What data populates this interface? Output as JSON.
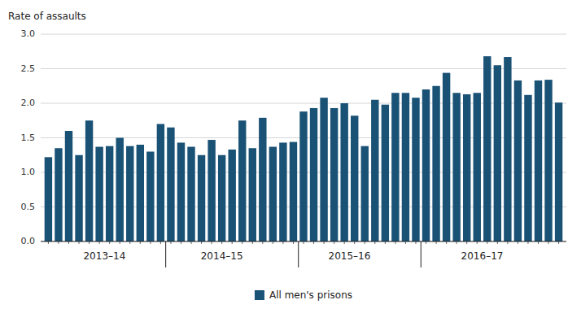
{
  "chart_data": {
    "type": "bar",
    "y_label": "Rate of assaults",
    "categories": [
      null,
      null,
      null,
      null,
      null,
      null,
      null,
      null,
      null,
      null,
      null,
      null,
      null,
      null,
      null,
      null,
      null,
      null,
      null,
      null,
      null,
      null,
      null,
      null,
      null,
      null,
      null,
      null,
      null,
      null,
      null,
      null,
      null,
      null,
      null,
      null,
      null,
      null,
      null,
      null,
      null,
      null,
      null,
      null,
      null,
      null,
      null,
      null,
      null,
      null,
      null
    ],
    "series": [
      {
        "name": "All men's prisons",
        "color": "#1a5276",
        "values": [
          1.22,
          1.35,
          1.6,
          1.25,
          1.75,
          1.37,
          1.38,
          1.5,
          1.38,
          1.4,
          1.3,
          1.7,
          1.65,
          1.43,
          1.37,
          1.25,
          1.47,
          1.25,
          1.33,
          1.75,
          1.35,
          1.79,
          1.37,
          1.43,
          1.44,
          1.88,
          1.93,
          2.08,
          1.93,
          2.0,
          1.82,
          1.38,
          2.05,
          1.98,
          2.15,
          2.15,
          2.08,
          2.2,
          2.25,
          2.44,
          2.15,
          2.13,
          2.15,
          2.68,
          2.55,
          2.67,
          2.33,
          2.12,
          2.33,
          2.34,
          2.01
        ]
      }
    ],
    "annotations": [
      {
        "text": "2013–14",
        "x": 5.5
      },
      {
        "text": "2014–15",
        "x": 17.0
      },
      {
        "text": "2015–16",
        "x": 29.5
      },
      {
        "text": "2016–17",
        "x": 42.5
      }
    ],
    "group_dividers": [
      11.5,
      24.5,
      36.5
    ],
    "ylim": [
      0,
      3
    ],
    "yticks": [
      {
        "value": 0,
        "label": "0.0"
      },
      0.5,
      {
        "value": 1.0,
        "label": "1.0"
      },
      1.5,
      {
        "value": 2.0,
        "label": "2.0"
      },
      2.5,
      {
        "value": 3.0,
        "label": "3.0"
      }
    ],
    "grid": true,
    "legend": "bottom",
    "tick_labels": "y"
  }
}
